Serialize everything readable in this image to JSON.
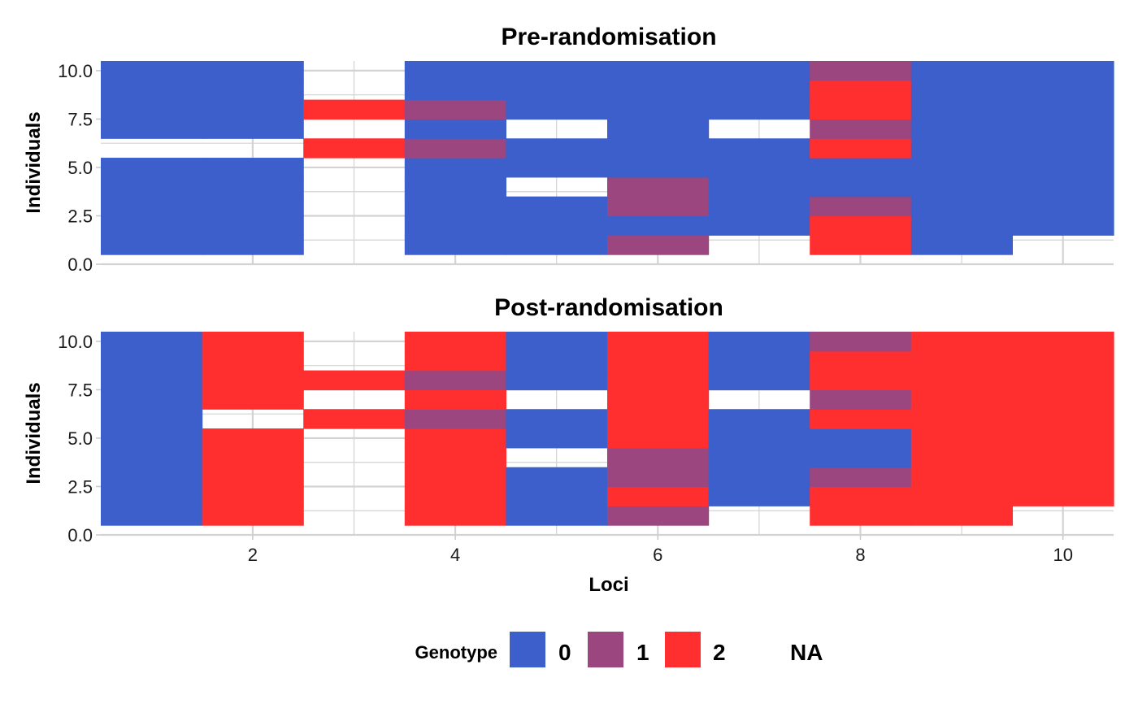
{
  "chart_data": [
    {
      "type": "heatmap",
      "title": "Pre-randomisation",
      "xlabel": "",
      "ylabel": "Individuals",
      "xlim": [
        0.5,
        10.5
      ],
      "ylim": [
        0,
        10.5
      ],
      "yticks": [
        "0.0",
        "2.5",
        "5.0",
        "7.5",
        "10.0"
      ],
      "grid": true,
      "columns": [
        {
          "locus": 1,
          "genotypes": [
            0,
            0,
            0,
            0,
            0,
            null,
            0,
            0,
            0,
            0
          ]
        },
        {
          "locus": 2,
          "genotypes": [
            0,
            0,
            0,
            0,
            0,
            null,
            0,
            0,
            0,
            0
          ]
        },
        {
          "locus": 3,
          "genotypes": [
            null,
            null,
            null,
            null,
            null,
            2,
            null,
            2,
            null,
            null
          ]
        },
        {
          "locus": 4,
          "genotypes": [
            0,
            0,
            0,
            0,
            0,
            1,
            0,
            1,
            0,
            0
          ]
        },
        {
          "locus": 5,
          "genotypes": [
            0,
            0,
            0,
            null,
            0,
            0,
            null,
            0,
            0,
            0
          ]
        },
        {
          "locus": 6,
          "genotypes": [
            1,
            0,
            1,
            1,
            0,
            0,
            0,
            0,
            0,
            0
          ]
        },
        {
          "locus": 7,
          "genotypes": [
            null,
            0,
            0,
            0,
            0,
            0,
            null,
            0,
            0,
            0
          ]
        },
        {
          "locus": 8,
          "genotypes": [
            2,
            2,
            1,
            0,
            0,
            2,
            1,
            2,
            2,
            1
          ]
        },
        {
          "locus": 9,
          "genotypes": [
            0,
            0,
            0,
            0,
            0,
            0,
            0,
            0,
            0,
            0
          ]
        },
        {
          "locus": 10,
          "genotypes": [
            null,
            0,
            0,
            0,
            0,
            0,
            0,
            0,
            0,
            0
          ]
        }
      ]
    },
    {
      "type": "heatmap",
      "title": "Post-randomisation",
      "xlabel": "Loci",
      "ylabel": "Individuals",
      "xlim": [
        0.5,
        10.5
      ],
      "ylim": [
        0,
        10.5
      ],
      "xticks": [
        "2",
        "4",
        "6",
        "8",
        "10"
      ],
      "yticks": [
        "0.0",
        "2.5",
        "5.0",
        "7.5",
        "10.0"
      ],
      "grid": true,
      "columns": [
        {
          "locus": 1,
          "genotypes": [
            0,
            0,
            0,
            0,
            0,
            0,
            0,
            0,
            0,
            0
          ]
        },
        {
          "locus": 2,
          "genotypes": [
            2,
            2,
            2,
            2,
            2,
            null,
            2,
            2,
            2,
            2
          ]
        },
        {
          "locus": 3,
          "genotypes": [
            null,
            null,
            null,
            null,
            null,
            2,
            null,
            2,
            null,
            null
          ]
        },
        {
          "locus": 4,
          "genotypes": [
            2,
            2,
            2,
            2,
            2,
            1,
            2,
            1,
            2,
            2
          ]
        },
        {
          "locus": 5,
          "genotypes": [
            0,
            0,
            0,
            null,
            0,
            0,
            null,
            0,
            0,
            0
          ]
        },
        {
          "locus": 6,
          "genotypes": [
            1,
            2,
            1,
            1,
            2,
            2,
            2,
            2,
            2,
            2
          ]
        },
        {
          "locus": 7,
          "genotypes": [
            null,
            0,
            0,
            0,
            0,
            0,
            null,
            0,
            0,
            0
          ]
        },
        {
          "locus": 8,
          "genotypes": [
            2,
            2,
            1,
            0,
            0,
            2,
            1,
            2,
            2,
            1
          ]
        },
        {
          "locus": 9,
          "genotypes": [
            2,
            2,
            2,
            2,
            2,
            2,
            2,
            2,
            2,
            2
          ]
        },
        {
          "locus": 10,
          "genotypes": [
            null,
            2,
            2,
            2,
            2,
            2,
            2,
            2,
            2,
            2
          ]
        }
      ]
    }
  ],
  "legend": {
    "title": "Genotype",
    "placement": "bottom",
    "items": [
      {
        "label": "0",
        "color": "#3C5FCB"
      },
      {
        "label": "1",
        "color": "#9B467E"
      },
      {
        "label": "2",
        "color": "#FF2F2F"
      },
      {
        "label": "NA",
        "color": ""
      }
    ]
  },
  "colors": {
    "grid": "#D3D3D3"
  }
}
